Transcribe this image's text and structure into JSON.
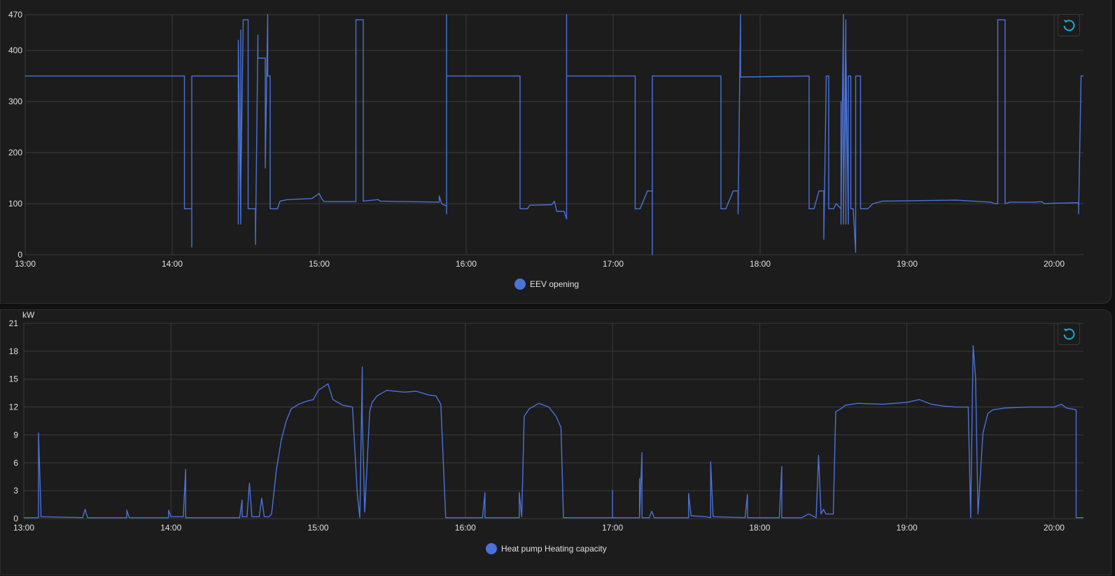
{
  "colors": {
    "series": "#4b72d8",
    "grid": "#3a3a3a",
    "text": "#e1e1e1",
    "reset_icon": "#1aa8d6",
    "background": "#1c1c1c"
  },
  "charts_ui": [
    {
      "reset_icon": "reset-zoom-icon",
      "legend_label": "EEV opening",
      "unit": ""
    },
    {
      "reset_icon": "reset-zoom-icon",
      "legend_label": "Heat pump Heating capacity",
      "unit": "kW"
    }
  ],
  "chart_data": [
    {
      "type": "line",
      "title": "",
      "ylabel": "",
      "xlabel": "",
      "xlim": [
        "13:00",
        "20:12"
      ],
      "ylim": [
        0,
        470
      ],
      "y_ticks": [
        0,
        100,
        200,
        300,
        400,
        470
      ],
      "x_ticks": [
        "13:00",
        "14:00",
        "15:00",
        "16:00",
        "17:00",
        "18:00",
        "19:00",
        "20:00"
      ],
      "grid": true,
      "legend_position": "bottom",
      "series": [
        {
          "name": "EEV opening",
          "points": [
            [
              "13:00",
              350
            ],
            [
              "14:05",
              350
            ],
            [
              "14:05",
              90
            ],
            [
              "14:08",
              90
            ],
            [
              "14:08",
              15
            ],
            [
              "14:08",
              350
            ],
            [
              "14:27",
              350
            ],
            [
              "14:27",
              60
            ],
            [
              "14:27",
              420
            ],
            [
              "14:28",
              60
            ],
            [
              "14:28",
              440
            ],
            [
              "14:28",
              130
            ],
            [
              "14:29",
              460
            ],
            [
              "14:31",
              460
            ],
            [
              "14:31",
              90
            ],
            [
              "14:34",
              90
            ],
            [
              "14:34",
              20
            ],
            [
              "14:35",
              430
            ],
            [
              "14:35",
              385
            ],
            [
              "14:38",
              385
            ],
            [
              "14:38",
              170
            ],
            [
              "14:39",
              470
            ],
            [
              "14:39",
              350
            ],
            [
              "14:40",
              350
            ],
            [
              "14:40",
              90
            ],
            [
              "14:43",
              90
            ],
            [
              "14:44",
              105
            ],
            [
              "14:47",
              108
            ],
            [
              "14:57",
              110
            ],
            [
              "15:00",
              120
            ],
            [
              "15:01",
              110
            ],
            [
              "15:02",
              104
            ],
            [
              "15:15",
              104
            ],
            [
              "15:15",
              460
            ],
            [
              "15:18",
              460
            ],
            [
              "15:18",
              105
            ],
            [
              "15:24",
              108
            ],
            [
              "15:25",
              105
            ],
            [
              "15:49",
              103
            ],
            [
              "15:49",
              115
            ],
            [
              "15:50",
              100
            ],
            [
              "15:52",
              95
            ],
            [
              "15:52",
              80
            ],
            [
              "15:52",
              470
            ],
            [
              "15:52",
              350
            ],
            [
              "16:22",
              350
            ],
            [
              "16:22",
              90
            ],
            [
              "16:25",
              90
            ],
            [
              "16:26",
              97
            ],
            [
              "16:35",
              98
            ],
            [
              "16:36",
              105
            ],
            [
              "16:37",
              85
            ],
            [
              "16:40",
              85
            ],
            [
              "16:41",
              70
            ],
            [
              "16:41",
              470
            ],
            [
              "16:41",
              350
            ],
            [
              "17:09",
              350
            ],
            [
              "17:09",
              90
            ],
            [
              "17:11",
              90
            ],
            [
              "17:14",
              125
            ],
            [
              "17:16",
              125
            ],
            [
              "17:16",
              0
            ],
            [
              "17:16",
              350
            ],
            [
              "17:44",
              350
            ],
            [
              "17:44",
              90
            ],
            [
              "17:46",
              90
            ],
            [
              "17:49",
              125
            ],
            [
              "17:51",
              125
            ],
            [
              "17:51",
              80
            ],
            [
              "17:52",
              470
            ],
            [
              "17:52",
              348
            ],
            [
              "18:20",
              350
            ],
            [
              "18:20",
              90
            ],
            [
              "18:22",
              90
            ],
            [
              "18:24",
              125
            ],
            [
              "18:26",
              125
            ],
            [
              "18:26",
              30
            ],
            [
              "18:27",
              350
            ],
            [
              "18:28",
              350
            ],
            [
              "18:28",
              90
            ],
            [
              "18:30",
              90
            ],
            [
              "18:31",
              100
            ],
            [
              "18:33",
              90
            ],
            [
              "18:33",
              300
            ],
            [
              "18:33",
              60
            ],
            [
              "18:34",
              470
            ],
            [
              "18:34",
              60
            ],
            [
              "18:35",
              460
            ],
            [
              "18:35",
              60
            ],
            [
              "18:35",
              400
            ],
            [
              "18:36",
              60
            ],
            [
              "18:36",
              350
            ],
            [
              "18:37",
              350
            ],
            [
              "18:37",
              90
            ],
            [
              "18:38",
              90
            ],
            [
              "18:39",
              5
            ],
            [
              "18:39",
              350
            ],
            [
              "18:41",
              350
            ],
            [
              "18:41",
              90
            ],
            [
              "18:44",
              90
            ],
            [
              "18:46",
              100
            ],
            [
              "18:50",
              105
            ],
            [
              "19:20",
              107
            ],
            [
              "19:27",
              105
            ],
            [
              "19:34",
              103
            ],
            [
              "19:36",
              100
            ],
            [
              "19:37",
              100
            ],
            [
              "19:37",
              460
            ],
            [
              "19:40",
              460
            ],
            [
              "19:40",
              100
            ],
            [
              "19:42",
              103
            ],
            [
              "19:52",
              103
            ],
            [
              "19:55",
              104
            ],
            [
              "19:56",
              100
            ],
            [
              "20:00",
              101
            ],
            [
              "20:10",
              102
            ],
            [
              "20:10",
              80
            ],
            [
              "20:11",
              350
            ],
            [
              "20:12",
              350
            ]
          ]
        }
      ]
    },
    {
      "type": "line",
      "title": "",
      "ylabel": "kW",
      "xlabel": "",
      "xlim": [
        "13:00",
        "20:12"
      ],
      "ylim": [
        0,
        21
      ],
      "y_ticks": [
        0,
        3,
        6,
        9,
        12,
        15,
        18,
        21
      ],
      "x_ticks": [
        "13:00",
        "14:00",
        "15:00",
        "16:00",
        "17:00",
        "18:00",
        "19:00",
        "20:00"
      ],
      "grid": true,
      "legend_position": "bottom",
      "series": [
        {
          "name": "Heat pump Heating capacity",
          "points": [
            [
              "13:00",
              0.1
            ],
            [
              "13:06",
              0.1
            ],
            [
              "13:06",
              9.2
            ],
            [
              "13:07",
              0.8
            ],
            [
              "13:07",
              0.2
            ],
            [
              "13:24",
              0.1
            ],
            [
              "13:25",
              1.0
            ],
            [
              "13:26",
              0.1
            ],
            [
              "13:42",
              0.1
            ],
            [
              "13:42",
              0.9
            ],
            [
              "13:43",
              0.1
            ],
            [
              "13:59",
              0.1
            ],
            [
              "13:59",
              0.9
            ],
            [
              "14:00",
              0.2
            ],
            [
              "14:05",
              0.2
            ],
            [
              "14:06",
              5.3
            ],
            [
              "14:06",
              0.1
            ],
            [
              "14:28",
              0.1
            ],
            [
              "14:29",
              2.0
            ],
            [
              "14:29",
              0.2
            ],
            [
              "14:31",
              0.2
            ],
            [
              "14:32",
              3.8
            ],
            [
              "14:33",
              0.2
            ],
            [
              "14:36",
              0.2
            ],
            [
              "14:37",
              2.2
            ],
            [
              "14:38",
              0.2
            ],
            [
              "14:40",
              0.2
            ],
            [
              "14:41",
              0.5
            ],
            [
              "14:43",
              5.3
            ],
            [
              "14:45",
              8.5
            ],
            [
              "14:47",
              10.5
            ],
            [
              "14:49",
              11.8
            ],
            [
              "14:52",
              12.3
            ],
            [
              "14:55",
              12.6
            ],
            [
              "14:58",
              12.8
            ],
            [
              "15:00",
              13.8
            ],
            [
              "15:04",
              14.5
            ],
            [
              "15:06",
              12.8
            ],
            [
              "15:10",
              12.2
            ],
            [
              "15:14",
              12.0
            ],
            [
              "15:16",
              2.5
            ],
            [
              "15:17",
              0.1
            ],
            [
              "15:18",
              16.3
            ],
            [
              "15:18",
              11.0
            ],
            [
              "15:19",
              0.7
            ],
            [
              "15:21",
              11.5
            ],
            [
              "15:22",
              12.5
            ],
            [
              "15:24",
              13.2
            ],
            [
              "15:28",
              13.8
            ],
            [
              "15:35",
              13.6
            ],
            [
              "15:40",
              13.7
            ],
            [
              "15:45",
              13.3
            ],
            [
              "15:48",
              13.2
            ],
            [
              "15:50",
              12.3
            ],
            [
              "15:52",
              0.1
            ],
            [
              "16:00",
              0.1
            ],
            [
              "16:07",
              0.1
            ],
            [
              "16:08",
              2.8
            ],
            [
              "16:08",
              0.1
            ],
            [
              "16:22",
              0.1
            ],
            [
              "16:22",
              2.8
            ],
            [
              "16:23",
              0.2
            ],
            [
              "16:24",
              11.0
            ],
            [
              "16:26",
              11.8
            ],
            [
              "16:30",
              12.4
            ],
            [
              "16:34",
              12.0
            ],
            [
              "16:37",
              11.0
            ],
            [
              "16:39",
              9.8
            ],
            [
              "16:40",
              0.1
            ],
            [
              "17:00",
              0.1
            ],
            [
              "17:00",
              3.0
            ],
            [
              "17:00",
              0.1
            ],
            [
              "17:11",
              0.1
            ],
            [
              "17:11",
              4.3
            ],
            [
              "17:11",
              0.1
            ],
            [
              "17:12",
              7.1
            ],
            [
              "17:12",
              0.1
            ],
            [
              "17:15",
              0.1
            ],
            [
              "17:16",
              0.8
            ],
            [
              "17:17",
              0.1
            ],
            [
              "17:31",
              0.1
            ],
            [
              "17:31",
              2.7
            ],
            [
              "17:32",
              0.3
            ],
            [
              "17:38",
              0.2
            ],
            [
              "17:40",
              0.1
            ],
            [
              "17:40",
              6.1
            ],
            [
              "17:41",
              0.2
            ],
            [
              "17:54",
              0.1
            ],
            [
              "17:55",
              2.6
            ],
            [
              "17:55",
              0.1
            ],
            [
              "18:08",
              0.1
            ],
            [
              "18:09",
              5.6
            ],
            [
              "18:09",
              0.1
            ],
            [
              "18:17",
              0.1
            ],
            [
              "18:20",
              0.5
            ],
            [
              "18:23",
              0.1
            ],
            [
              "18:24",
              6.8
            ],
            [
              "18:25",
              0.5
            ],
            [
              "18:26",
              1.0
            ],
            [
              "18:27",
              0.5
            ],
            [
              "18:30",
              0.5
            ],
            [
              "18:31",
              11.5
            ],
            [
              "18:33",
              11.8
            ],
            [
              "18:35",
              12.2
            ],
            [
              "18:40",
              12.4
            ],
            [
              "18:50",
              12.3
            ],
            [
              "19:00",
              12.5
            ],
            [
              "19:05",
              12.8
            ],
            [
              "19:10",
              12.3
            ],
            [
              "19:15",
              12.1
            ],
            [
              "19:20",
              12.0
            ],
            [
              "19:25",
              12.0
            ],
            [
              "19:26",
              0.1
            ],
            [
              "19:27",
              18.6
            ],
            [
              "19:28",
              15.2
            ],
            [
              "19:29",
              0.5
            ],
            [
              "19:31",
              9.2
            ],
            [
              "19:33",
              11.3
            ],
            [
              "19:35",
              11.7
            ],
            [
              "19:40",
              11.9
            ],
            [
              "19:50",
              12.0
            ],
            [
              "20:00",
              12.0
            ],
            [
              "20:03",
              12.3
            ],
            [
              "20:05",
              11.9
            ],
            [
              "20:09",
              11.7
            ],
            [
              "20:09",
              0.1
            ],
            [
              "20:12",
              0.1
            ]
          ]
        }
      ]
    }
  ]
}
